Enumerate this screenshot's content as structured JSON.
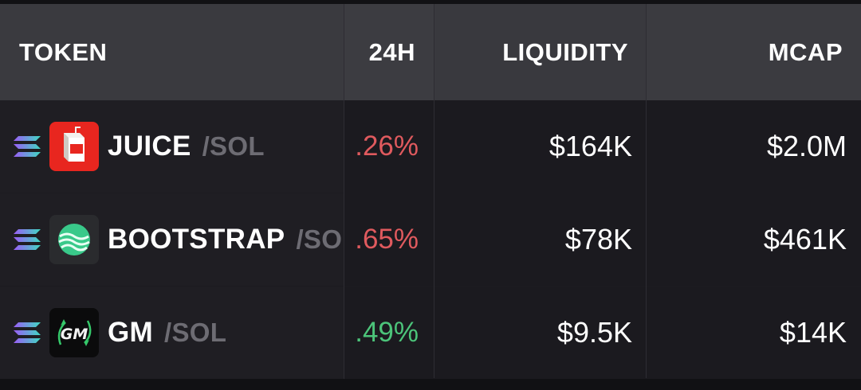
{
  "columns": {
    "token": "TOKEN",
    "change_24h": "24H",
    "liquidity": "LIQUIDITY",
    "mcap": "MCAP"
  },
  "colors": {
    "negative": "#e05a5e",
    "positive": "#4cc47a"
  },
  "rows": [
    {
      "symbol": "JUICE",
      "pair": "/SOL",
      "change_24h": ".26%",
      "direction": "negative",
      "liquidity": "$164K",
      "mcap": "$2.0M",
      "chain_icon": "solana-icon",
      "logo": "juice-box-logo"
    },
    {
      "symbol": "BOOTSTRAP",
      "pair": "/SOL",
      "change_24h": ".65%",
      "direction": "negative",
      "liquidity": "$78K",
      "mcap": "$461K",
      "chain_icon": "solana-icon",
      "logo": "green-wave-logo"
    },
    {
      "symbol": "GM",
      "pair": "/SOL",
      "change_24h": ".49%",
      "direction": "positive",
      "liquidity": "$9.5K",
      "mcap": "$14K",
      "chain_icon": "solana-icon",
      "logo": "gm-logo"
    }
  ]
}
